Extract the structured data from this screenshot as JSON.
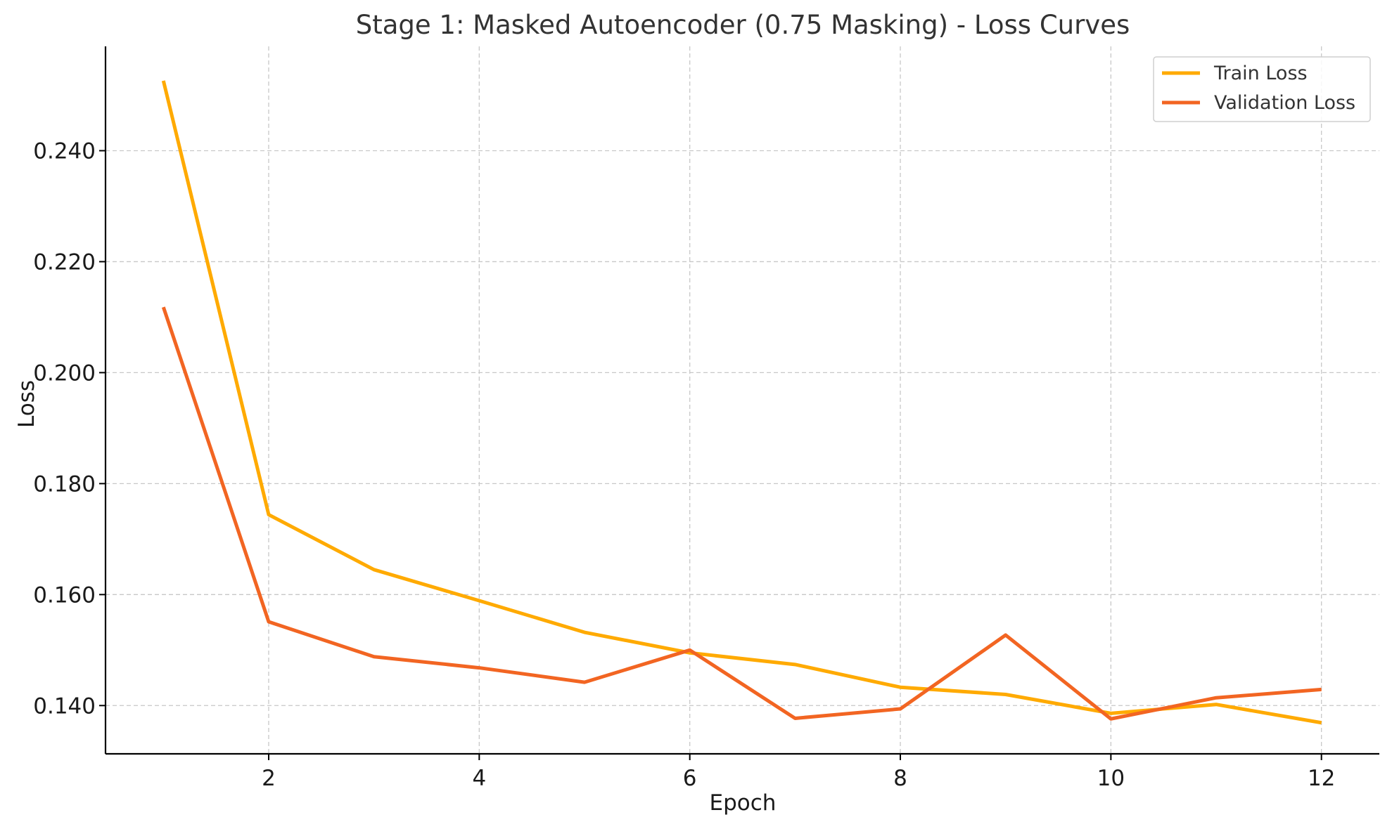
{
  "chart_data": {
    "type": "line",
    "title": "Stage 1: Masked Autoencoder (0.75 Masking) - Loss Curves",
    "xlabel": "Epoch",
    "ylabel": "Loss",
    "x": [
      1,
      2,
      3,
      4,
      5,
      6,
      7,
      8,
      9,
      10,
      11,
      12
    ],
    "xlim": [
      0.45,
      12.55
    ],
    "ylim": [
      0.1313,
      0.2588
    ],
    "x_ticks": [
      2,
      4,
      6,
      8,
      10,
      12
    ],
    "x_tick_labels": [
      "2",
      "4",
      "6",
      "8",
      "10",
      "12"
    ],
    "y_ticks": [
      0.14,
      0.16,
      0.18,
      0.2,
      0.22,
      0.24
    ],
    "y_tick_labels": [
      "0.140",
      "0.160",
      "0.180",
      "0.200",
      "0.220",
      "0.240"
    ],
    "grid": true,
    "legend_position": "top-right",
    "series": [
      {
        "name": "Train Loss",
        "color": "#FFAA00",
        "values": [
          0.2526,
          0.1744,
          0.1645,
          0.1589,
          0.1532,
          0.1495,
          0.1474,
          0.1433,
          0.142,
          0.1386,
          0.1402,
          0.1369
        ]
      },
      {
        "name": "Validation Loss",
        "color": "#F26522",
        "values": [
          0.2118,
          0.1551,
          0.1488,
          0.1468,
          0.1442,
          0.15,
          0.1377,
          0.1394,
          0.1527,
          0.1376,
          0.1414,
          0.1429
        ]
      }
    ]
  }
}
